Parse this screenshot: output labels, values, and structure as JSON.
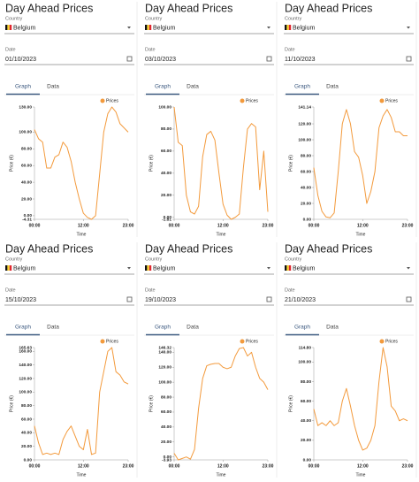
{
  "panels": [
    {
      "title": "Day Ahead Prices",
      "country_label": "Country",
      "country": "Belgium",
      "date_label": "Date",
      "date": "01/10/2023",
      "tabs": [
        "Graph",
        "Data"
      ],
      "chart": {
        "type": "line",
        "legend": "Prices",
        "y_label": "Price (€)",
        "x_label": "Time",
        "color": "#f39a3c",
        "x": [
          0,
          1,
          2,
          3,
          4,
          5,
          6,
          7,
          8,
          9,
          10,
          11,
          12,
          13,
          14,
          15,
          16,
          17,
          18,
          19,
          20,
          21,
          22,
          23
        ],
        "values": [
          103,
          92,
          88,
          57,
          57,
          70,
          73,
          88,
          82,
          65,
          40,
          20,
          3,
          -2,
          -4.31,
          0,
          50,
          100,
          122,
          130,
          124,
          110,
          105,
          100
        ],
        "xlim": [
          0,
          23
        ],
        "xticks": [
          {
            "value": 0,
            "label": "00:00"
          },
          {
            "value": 12,
            "label": "12:00"
          },
          {
            "value": 23,
            "label": "23:00"
          }
        ],
        "ylim": [
          -4.31,
          130
        ],
        "yticks": [
          {
            "value": 130,
            "label": "130.00"
          },
          {
            "value": 100,
            "label": "100.00"
          },
          {
            "value": 80,
            "label": "80.00"
          },
          {
            "value": 60,
            "label": "60.00"
          },
          {
            "value": 40,
            "label": "40.00"
          },
          {
            "value": 20,
            "label": "20.00"
          },
          {
            "value": 0,
            "label": "0.00"
          },
          {
            "value": -4.31,
            "label": "-4.31"
          }
        ]
      }
    },
    {
      "title": "Day Ahead Prices",
      "country_label": "Country",
      "country": "Belgium",
      "date_label": "Date",
      "date": "03/10/2023",
      "tabs": [
        "Graph",
        "Data"
      ],
      "chart": {
        "type": "line",
        "legend": "Prices",
        "y_label": "Price (€)",
        "x_label": "Time",
        "color": "#f39a3c",
        "x": [
          0,
          1,
          2,
          3,
          4,
          5,
          6,
          7,
          8,
          9,
          10,
          11,
          12,
          13,
          14,
          15,
          16,
          17,
          18,
          19,
          20,
          21,
          22,
          23
        ],
        "values": [
          100,
          68,
          65,
          20,
          5,
          3,
          10,
          55,
          75,
          78,
          70,
          40,
          12,
          2,
          -1.81,
          0,
          3,
          45,
          80,
          85,
          82,
          25,
          60,
          5
        ],
        "xlim": [
          0,
          23
        ],
        "xticks": [
          {
            "value": 0,
            "label": "00:00"
          },
          {
            "value": 12,
            "label": "12:00"
          },
          {
            "value": 23,
            "label": "23:00"
          }
        ],
        "ylim": [
          -1.81,
          100
        ],
        "yticks": [
          {
            "value": 100,
            "label": "100.00"
          },
          {
            "value": 80,
            "label": "80.00"
          },
          {
            "value": 60,
            "label": "60.00"
          },
          {
            "value": 40,
            "label": "40.00"
          },
          {
            "value": 20,
            "label": "20.00"
          },
          {
            "value": 0,
            "label": "0.00"
          },
          {
            "value": -1.81,
            "label": "-1.81"
          }
        ]
      }
    },
    {
      "title": "Day Ahead Prices",
      "country_label": "Country",
      "country": "Belgium",
      "date_label": "Date",
      "date": "11/10/2023",
      "tabs": [
        "Graph",
        "Data"
      ],
      "chart": {
        "type": "line",
        "legend": "Prices",
        "y_label": "Price (€)",
        "x_label": "Time",
        "color": "#f39a3c",
        "x": [
          0,
          1,
          2,
          3,
          4,
          5,
          6,
          7,
          8,
          9,
          10,
          11,
          12,
          13,
          14,
          15,
          16,
          17,
          18,
          19,
          20,
          21,
          22,
          23
        ],
        "values": [
          65,
          30,
          10,
          3,
          2,
          8,
          60,
          120,
          138,
          120,
          85,
          78,
          55,
          20,
          35,
          60,
          115,
          130,
          138,
          128,
          110,
          110,
          105,
          105
        ],
        "xlim": [
          0,
          23
        ],
        "xticks": [
          {
            "value": 0,
            "label": "00:00"
          },
          {
            "value": 12,
            "label": "12:00"
          },
          {
            "value": 23,
            "label": "23:00"
          }
        ],
        "ylim": [
          0,
          141.14
        ],
        "yticks": [
          {
            "value": 141.14,
            "label": "141.14"
          },
          {
            "value": 120,
            "label": "120.00"
          },
          {
            "value": 100,
            "label": "100.00"
          },
          {
            "value": 80,
            "label": "80.00"
          },
          {
            "value": 60,
            "label": "60.00"
          },
          {
            "value": 40,
            "label": "40.00"
          },
          {
            "value": 20,
            "label": "20.00"
          },
          {
            "value": 0,
            "label": "0.00"
          }
        ]
      }
    },
    {
      "title": "Day Ahead Prices",
      "country_label": "Country",
      "country": "Belgium",
      "date_label": "Date",
      "date": "15/10/2023",
      "tabs": [
        "Graph",
        "Data"
      ],
      "chart": {
        "type": "line",
        "legend": "Prices",
        "y_label": "Price (€)",
        "x_label": "Time",
        "color": "#f39a3c",
        "x": [
          0,
          1,
          2,
          3,
          4,
          5,
          6,
          7,
          8,
          9,
          10,
          11,
          12,
          13,
          14,
          15,
          16,
          17,
          18,
          19,
          20,
          21,
          22,
          23
        ],
        "values": [
          50,
          25,
          8,
          10,
          8,
          10,
          8,
          30,
          42,
          50,
          35,
          20,
          15,
          45,
          8,
          10,
          100,
          130,
          160,
          165.63,
          130,
          125,
          115,
          112
        ],
        "xlim": [
          0,
          23
        ],
        "xticks": [
          {
            "value": 0,
            "label": "00:00"
          },
          {
            "value": 12,
            "label": "12:00"
          },
          {
            "value": 23,
            "label": "23:00"
          }
        ],
        "ylim": [
          0,
          165.63
        ],
        "yticks": [
          {
            "value": 165.63,
            "label": "165.63"
          },
          {
            "value": 160,
            "label": "160.00"
          },
          {
            "value": 140,
            "label": "140.00"
          },
          {
            "value": 120,
            "label": "120.00"
          },
          {
            "value": 100,
            "label": "100.00"
          },
          {
            "value": 80,
            "label": "80.00"
          },
          {
            "value": 60,
            "label": "60.00"
          },
          {
            "value": 40,
            "label": "40.00"
          },
          {
            "value": 20,
            "label": "20.00"
          },
          {
            "value": 0,
            "label": "0.00"
          }
        ]
      }
    },
    {
      "title": "Day Ahead Prices",
      "country_label": "Country",
      "country": "Belgium",
      "date_label": "Date",
      "date": "19/10/2023",
      "tabs": [
        "Graph",
        "Data"
      ],
      "chart": {
        "type": "line",
        "legend": "Prices",
        "y_label": "Price (€)",
        "x_label": "Time",
        "color": "#f39a3c",
        "x": [
          0,
          1,
          2,
          3,
          4,
          5,
          6,
          7,
          8,
          9,
          10,
          11,
          12,
          13,
          14,
          15,
          16,
          17,
          18,
          19,
          20,
          21,
          22,
          23
        ],
        "values": [
          5,
          -3.93,
          -2,
          0,
          -3,
          10,
          65,
          105,
          122,
          124,
          125,
          125,
          120,
          118,
          120,
          135,
          145,
          146.32,
          135,
          140,
          120,
          105,
          100,
          90
        ],
        "xlim": [
          0,
          23
        ],
        "xticks": [
          {
            "value": 0,
            "label": "00:00"
          },
          {
            "value": 12,
            "label": "12:00"
          },
          {
            "value": 23,
            "label": "23:00"
          }
        ],
        "ylim": [
          -3.93,
          146.32
        ],
        "yticks": [
          {
            "value": 146.32,
            "label": "146.32"
          },
          {
            "value": 140,
            "label": "140.00"
          },
          {
            "value": 120,
            "label": "120.00"
          },
          {
            "value": 100,
            "label": "100.00"
          },
          {
            "value": 80,
            "label": "80.00"
          },
          {
            "value": 60,
            "label": "60.00"
          },
          {
            "value": 40,
            "label": "40.00"
          },
          {
            "value": 20,
            "label": "20.00"
          },
          {
            "value": 0,
            "label": "0.00"
          },
          {
            "value": -3.93,
            "label": "-3.93"
          }
        ]
      }
    },
    {
      "title": "Day Ahead Prices",
      "country_label": "Country",
      "country": "Belgium",
      "date_label": "Date",
      "date": "21/10/2023",
      "tabs": [
        "Graph",
        "Data"
      ],
      "chart": {
        "type": "line",
        "legend": "Prices",
        "y_label": "Price (€)",
        "x_label": "Time",
        "color": "#f39a3c",
        "x": [
          0,
          1,
          2,
          3,
          4,
          5,
          6,
          7,
          8,
          9,
          10,
          11,
          12,
          13,
          14,
          15,
          16,
          17,
          18,
          19,
          20,
          21,
          22,
          23
        ],
        "values": [
          52,
          35,
          38,
          35,
          40,
          35,
          38,
          60,
          73,
          55,
          35,
          20,
          10,
          12,
          20,
          35,
          80,
          114.8,
          95,
          55,
          50,
          40,
          42,
          40
        ],
        "xlim": [
          0,
          23
        ],
        "xticks": [
          {
            "value": 0,
            "label": "00:00"
          },
          {
            "value": 12,
            "label": "12:00"
          },
          {
            "value": 23,
            "label": "23:00"
          }
        ],
        "ylim": [
          0,
          114.8
        ],
        "yticks": [
          {
            "value": 114.8,
            "label": "114.80"
          },
          {
            "value": 100,
            "label": "100.00"
          },
          {
            "value": 80,
            "label": "80.00"
          },
          {
            "value": 60,
            "label": "60.00"
          },
          {
            "value": 40,
            "label": "40.00"
          },
          {
            "value": 20,
            "label": "20.00"
          },
          {
            "value": 0,
            "label": "0.00"
          }
        ]
      }
    }
  ]
}
